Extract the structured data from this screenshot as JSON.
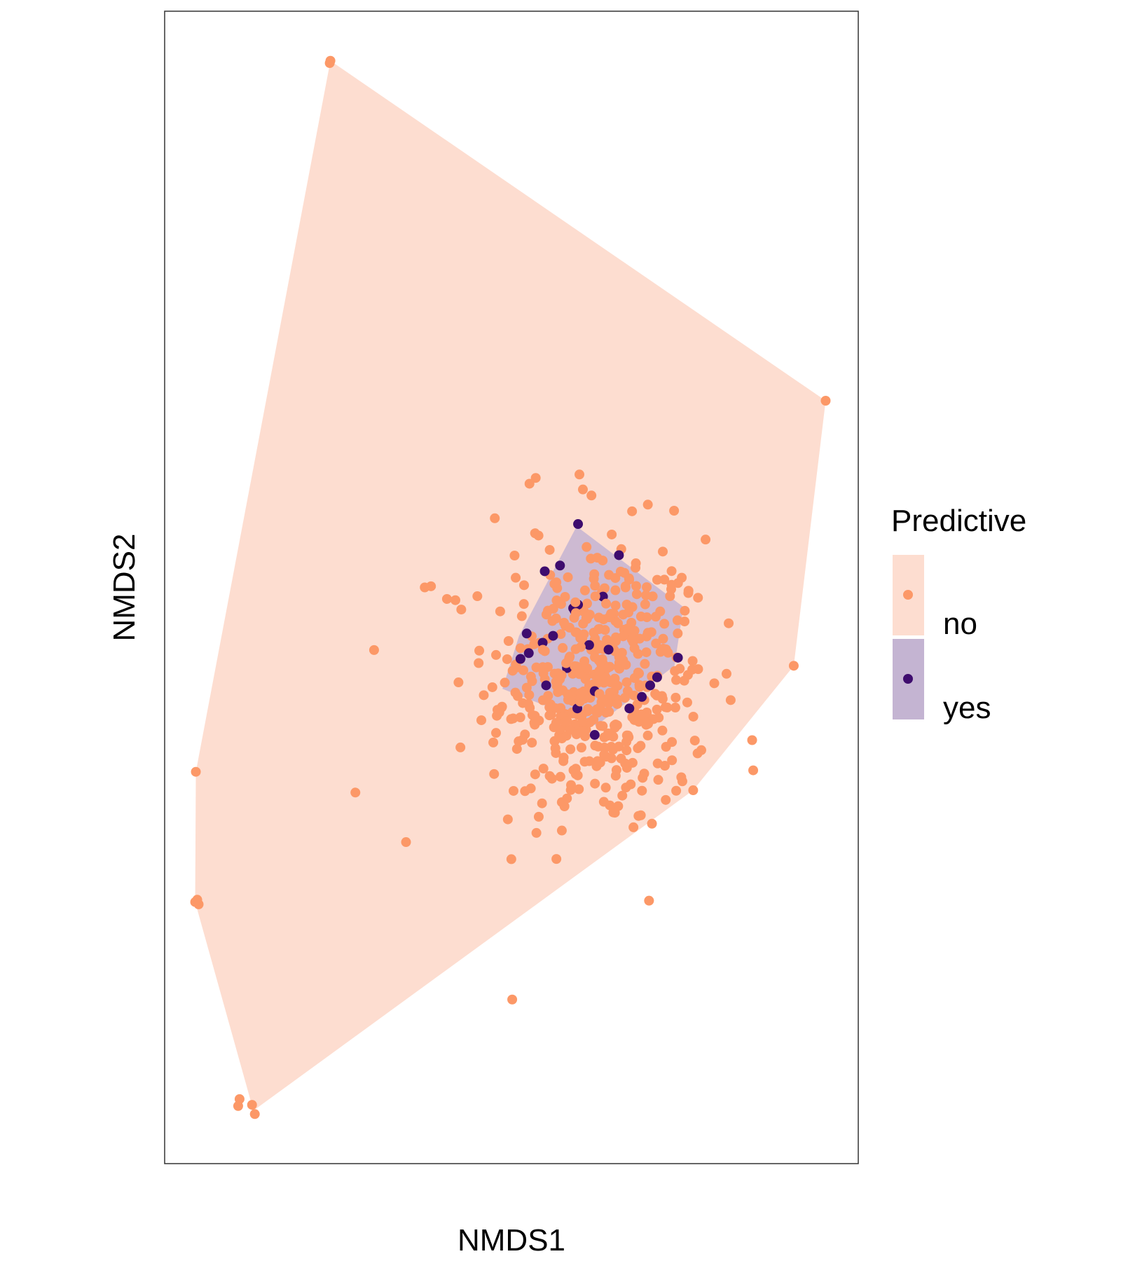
{
  "chart_data": {
    "type": "scatter",
    "title": "",
    "xlabel": "NMDS1",
    "ylabel": "NMDS2",
    "xlim": [
      0,
      1
    ],
    "ylim": [
      0,
      1
    ],
    "grid": false,
    "tick_labels": "none",
    "legend": {
      "title": "Predictive",
      "position": "right"
    },
    "series": [
      {
        "name": "no",
        "point_color": "#FC9867",
        "hull_color": "#FDDDD0",
        "hull": [
          [
            0.239,
            0.957
          ],
          [
            0.953,
            0.662
          ],
          [
            0.907,
            0.432
          ],
          [
            0.762,
            0.324
          ],
          [
            0.128,
            0.046
          ],
          [
            0.044,
            0.227
          ],
          [
            0.045,
            0.34
          ]
        ],
        "points": [
          [
            0.239,
            0.957
          ],
          [
            0.238,
            0.955
          ],
          [
            0.953,
            0.662
          ],
          [
            0.907,
            0.432
          ],
          [
            0.762,
            0.324
          ],
          [
            0.13,
            0.043
          ],
          [
            0.106,
            0.05
          ],
          [
            0.126,
            0.051
          ],
          [
            0.108,
            0.056
          ],
          [
            0.044,
            0.227
          ],
          [
            0.049,
            0.225
          ],
          [
            0.047,
            0.229
          ],
          [
            0.045,
            0.34
          ],
          [
            0.275,
            0.322
          ],
          [
            0.348,
            0.279
          ],
          [
            0.535,
            0.595
          ],
          [
            0.598,
            0.598
          ],
          [
            0.603,
            0.585
          ],
          [
            0.526,
            0.59
          ],
          [
            0.384,
            0.501
          ],
          [
            0.375,
            0.5
          ],
          [
            0.407,
            0.49
          ],
          [
            0.476,
            0.56
          ],
          [
            0.539,
            0.545
          ],
          [
            0.534,
            0.547
          ]
        ],
        "cluster": {
          "cx": 0.625,
          "cy": 0.415,
          "sx": 0.08,
          "sy": 0.065,
          "count": 420
        }
      },
      {
        "name": "yes",
        "point_color": "#3E0C6E",
        "hull_color": "#C4B4D2",
        "hull": [
          [
            0.594,
            0.553
          ],
          [
            0.748,
            0.483
          ],
          [
            0.735,
            0.432
          ],
          [
            0.622,
            0.38
          ],
          [
            0.487,
            0.412
          ],
          [
            0.511,
            0.458
          ]
        ],
        "points": [
          [
            0.596,
            0.555
          ],
          [
            0.655,
            0.528
          ],
          [
            0.548,
            0.514
          ],
          [
            0.57,
            0.519
          ],
          [
            0.632,
            0.492
          ],
          [
            0.589,
            0.482
          ],
          [
            0.596,
            0.485
          ],
          [
            0.591,
            0.48
          ],
          [
            0.522,
            0.46
          ],
          [
            0.545,
            0.452
          ],
          [
            0.56,
            0.458
          ],
          [
            0.513,
            0.438
          ],
          [
            0.525,
            0.443
          ],
          [
            0.74,
            0.439
          ],
          [
            0.7,
            0.415
          ],
          [
            0.64,
            0.446
          ],
          [
            0.58,
            0.43
          ],
          [
            0.62,
            0.41
          ],
          [
            0.612,
            0.45
          ],
          [
            0.688,
            0.405
          ],
          [
            0.71,
            0.422
          ],
          [
            0.55,
            0.415
          ],
          [
            0.62,
            0.372
          ],
          [
            0.67,
            0.395
          ],
          [
            0.595,
            0.395
          ]
        ]
      }
    ]
  }
}
